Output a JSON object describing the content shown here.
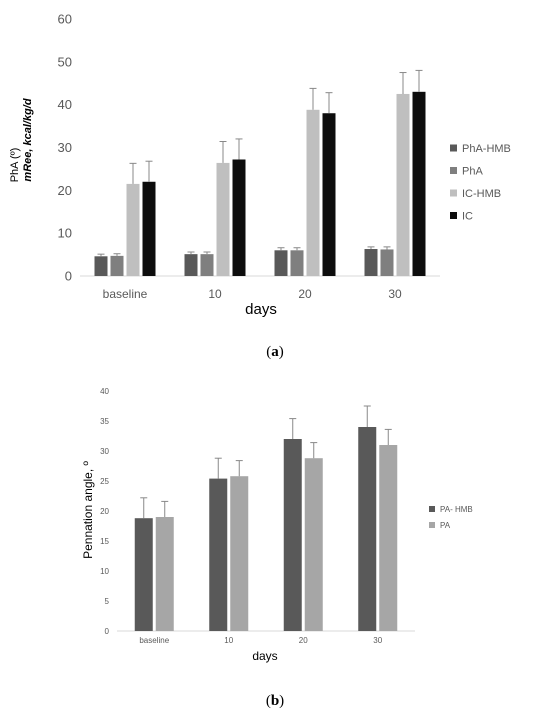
{
  "chart_data": [
    {
      "type": "bar",
      "categories": [
        "baseline",
        "10",
        "20",
        "30"
      ],
      "series": [
        {
          "name": "PhA-HMB",
          "values": [
            4.6,
            5.1,
            6.0,
            6.3
          ],
          "errors": [
            0.5,
            0.5,
            0.6,
            0.5
          ],
          "color": "#595959"
        },
        {
          "name": "PhA",
          "values": [
            4.7,
            5.1,
            6.0,
            6.2
          ],
          "errors": [
            0.5,
            0.5,
            0.6,
            0.6
          ],
          "color": "#7f7f7f"
        },
        {
          "name": "IC-HMB",
          "values": [
            21.5,
            26.4,
            38.8,
            42.5
          ],
          "errors": [
            4.8,
            5.0,
            5.0,
            5.0
          ],
          "color": "#bfbfbf"
        },
        {
          "name": "IC",
          "values": [
            22.0,
            27.2,
            38.0,
            43.0
          ],
          "errors": [
            4.8,
            4.8,
            4.8,
            5.0
          ],
          "color": "#0d0d0d"
        }
      ],
      "ylabel_line1": "PhA (º)",
      "ylabel_line2": "mRee, kcal/kg/d",
      "xlabel": "days",
      "ylim": [
        0,
        60
      ],
      "yticks": [
        0,
        10,
        20,
        30,
        40,
        50,
        60
      ],
      "grid": false,
      "legend": "right",
      "caption_label": "a"
    },
    {
      "type": "bar",
      "categories": [
        "baseline",
        "10",
        "20",
        "30"
      ],
      "series": [
        {
          "name": "PA- HMB",
          "values": [
            18.8,
            25.4,
            32.0,
            34.0
          ],
          "errors": [
            3.4,
            3.4,
            3.4,
            3.5
          ],
          "color": "#595959"
        },
        {
          "name": "PA",
          "values": [
            19.0,
            25.8,
            28.8,
            31.0
          ],
          "errors": [
            2.6,
            2.6,
            2.6,
            2.6
          ],
          "color": "#a6a6a6"
        }
      ],
      "ylabel": "Pennation angle, º",
      "xlabel": "days",
      "ylim": [
        0,
        40
      ],
      "yticks": [
        0,
        5,
        10,
        15,
        20,
        25,
        30,
        35,
        40
      ],
      "grid": false,
      "legend": "right",
      "caption_label": "b"
    }
  ]
}
